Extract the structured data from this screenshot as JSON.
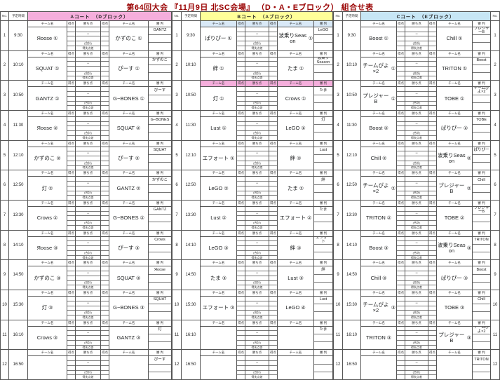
{
  "title": "第64回大会 『11月9日 北SC会場』 （D・A・Eブロック） 組合せ表",
  "title_color": "#990000",
  "labels": {
    "no": "No.",
    "time": "予定時間",
    "team": "チーム名",
    "score": "得点",
    "points": "勝ち点",
    "referee": "審 判",
    "dash": "−",
    "total": "(合計)",
    "diff": "得失点差"
  },
  "sections": [
    {
      "id": "A",
      "banner": "Aコート　（Dブロック）",
      "banner_color": "#F5AEDC",
      "matches": [
        {
          "no": "1",
          "time": "9:30",
          "home": "Яoose",
          "home_n": "①",
          "away": "かずのこ",
          "away_n": "①",
          "ref": "GANTZ",
          "hdr_bg": ""
        },
        {
          "no": "2",
          "time": "10:10",
          "home": "SQUAT",
          "home_n": "①",
          "away": "ぴーす",
          "away_n": "①",
          "ref": "かずのこ",
          "hdr_bg": ""
        },
        {
          "no": "3",
          "time": "10:50",
          "home": "GANTZ",
          "home_n": "①",
          "away": "G−BONES",
          "away_n": "①",
          "ref": "ぴーす",
          "hdr_bg": ""
        },
        {
          "no": "4",
          "time": "11:30",
          "home": "Яoose",
          "home_n": "②",
          "away": "SQUAT",
          "away_n": "②",
          "ref": "G−BONES",
          "hdr_bg": ""
        },
        {
          "no": "5",
          "time": "12:10",
          "home": "かずのこ",
          "home_n": "②",
          "away": "ぴーす",
          "away_n": "②",
          "ref": "SQUAT",
          "hdr_bg": ""
        },
        {
          "no": "6",
          "time": "12:50",
          "home": "灯",
          "home_n": "②",
          "away": "GANTZ",
          "away_n": "②",
          "ref": "かずのこ",
          "hdr_bg": ""
        },
        {
          "no": "7",
          "time": "13:30",
          "home": "Crows",
          "home_n": "②",
          "away": "G−BONES",
          "away_n": "②",
          "ref": "GANTZ",
          "hdr_bg": ""
        },
        {
          "no": "8",
          "time": "14:10",
          "home": "Яoose",
          "home_n": "③",
          "away": "ぴーす",
          "away_n": "③",
          "ref": "Crows",
          "hdr_bg": ""
        },
        {
          "no": "9",
          "time": "14:50",
          "home": "かずのこ",
          "home_n": "③",
          "away": "SQUAT",
          "away_n": "③",
          "ref": "Яoose",
          "hdr_bg": ""
        },
        {
          "no": "10",
          "time": "15:30",
          "home": "灯",
          "home_n": "③",
          "away": "G−BONES",
          "away_n": "③",
          "ref": "SQUAT",
          "hdr_bg": ""
        },
        {
          "no": "11",
          "time": "16:10",
          "home": "Crows",
          "home_n": "③",
          "away": "GANTZ",
          "away_n": "③",
          "ref": "灯",
          "hdr_bg": ""
        },
        {
          "no": "12",
          "time": "16:50",
          "home": "",
          "home_n": "",
          "away": "",
          "away_n": "",
          "ref": "ぴーす",
          "hdr_bg": ""
        }
      ]
    },
    {
      "id": "B",
      "banner": "Bコート　（Aブロック）",
      "banner_color": "#FFFF99",
      "matches": [
        {
          "no": "1",
          "time": "9:30",
          "home": "ぱりぴー",
          "home_n": "①",
          "away": "波乗りSeason",
          "away_n": "①",
          "ref": "LeGO",
          "hdr_bg": "#D9E9F7"
        },
        {
          "no": "2",
          "time": "10:10",
          "home": "絆",
          "home_n": "①",
          "away": "たま",
          "away_n": "①",
          "ref": "波乗りSeason",
          "hdr_bg": ""
        },
        {
          "no": "3",
          "time": "10:50",
          "home": "灯",
          "home_n": "①",
          "away": "Crows",
          "away_n": "①",
          "ref": "たま",
          "hdr_bg": "#F5AEDC"
        },
        {
          "no": "4",
          "time": "11:30",
          "home": "Lust",
          "home_n": "①",
          "away": "LeGO",
          "away_n": "①",
          "ref": "灯",
          "hdr_bg": ""
        },
        {
          "no": "5",
          "time": "12:10",
          "home": "エフォート",
          "home_n": "①",
          "away": "絆",
          "away_n": "②",
          "ref": "Lust",
          "hdr_bg": ""
        },
        {
          "no": "6",
          "time": "12:50",
          "home": "LeGO",
          "home_n": "②",
          "away": "たま",
          "away_n": "②",
          "ref": "絆",
          "hdr_bg": ""
        },
        {
          "no": "7",
          "time": "13:30",
          "home": "Lust",
          "home_n": "②",
          "away": "エフォート",
          "away_n": "②",
          "ref": "たま",
          "hdr_bg": ""
        },
        {
          "no": "8",
          "time": "14:10",
          "home": "LeGO",
          "home_n": "③",
          "away": "絆",
          "away_n": "③",
          "ref": "エフォート",
          "hdr_bg": ""
        },
        {
          "no": "9",
          "time": "14:50",
          "home": "たま",
          "home_n": "③",
          "away": "Lust",
          "away_n": "③",
          "ref": "絆",
          "hdr_bg": ""
        },
        {
          "no": "10",
          "time": "15:30",
          "home": "エフォート",
          "home_n": "③",
          "away": "LeGO",
          "away_n": "④",
          "ref": "Lust",
          "hdr_bg": ""
        },
        {
          "no": "11",
          "time": "16:10",
          "home": "",
          "home_n": "",
          "away": "",
          "away_n": "",
          "ref": "たま",
          "hdr_bg": ""
        },
        {
          "no": "12",
          "time": "16:50",
          "home": "",
          "home_n": "",
          "away": "",
          "away_n": "",
          "ref": "",
          "hdr_bg": ""
        }
      ]
    },
    {
      "id": "C",
      "banner": "Cコート　（Eブロック）",
      "banner_color": "#C7E6F5",
      "matches": [
        {
          "no": "1",
          "time": "9:30",
          "home": "Boost",
          "home_n": "①",
          "away": "Chill",
          "away_n": "①",
          "ref": "プレジャーB",
          "hdr_bg": ""
        },
        {
          "no": "2",
          "time": "10:10",
          "home": "チームぴよ×2",
          "home_n": "①",
          "away": "TRITON",
          "away_n": "①",
          "ref": "Boost",
          "hdr_bg": ""
        },
        {
          "no": "3",
          "time": "10:50",
          "home": "プレジャーB",
          "home_n": "①",
          "away": "TOBE",
          "away_n": "①",
          "ref": "チームぴよ×2",
          "hdr_bg": ""
        },
        {
          "no": "4",
          "time": "11:30",
          "home": "Boost",
          "home_n": "②",
          "away": "ぱりぴー",
          "away_n": "②",
          "ref": "TOBE",
          "hdr_bg": ""
        },
        {
          "no": "5",
          "time": "12:10",
          "home": "Chill",
          "home_n": "②",
          "away": "波乗りSeason",
          "away_n": "②",
          "ref": "ぱりぴー",
          "hdr_bg": ""
        },
        {
          "no": "6",
          "time": "12:50",
          "home": "チームぴよ×2",
          "home_n": "②",
          "away": "プレジャーB",
          "away_n": "②",
          "ref": "Chill",
          "hdr_bg": ""
        },
        {
          "no": "7",
          "time": "13:30",
          "home": "TRITON",
          "home_n": "②",
          "away": "TOBE",
          "away_n": "②",
          "ref": "プレジャーB",
          "hdr_bg": ""
        },
        {
          "no": "8",
          "time": "14:10",
          "home": "Boost",
          "home_n": "③",
          "away": "波乗りSeason",
          "away_n": "③",
          "ref": "TRITON",
          "hdr_bg": ""
        },
        {
          "no": "9",
          "time": "14:50",
          "home": "Chill",
          "home_n": "③",
          "away": "ぱりぴー",
          "away_n": "③",
          "ref": "Boost",
          "hdr_bg": ""
        },
        {
          "no": "10",
          "time": "15:30",
          "home": "チームぴよ×2",
          "home_n": "③",
          "away": "TOBE",
          "away_n": "③",
          "ref": "Chill",
          "hdr_bg": ""
        },
        {
          "no": "11",
          "time": "16:10",
          "home": "TRITON",
          "home_n": "③",
          "away": "プレジャーB",
          "away_n": "③",
          "ref": "チームぴよ×2",
          "hdr_bg": ""
        },
        {
          "no": "12",
          "time": "16:50",
          "home": "",
          "home_n": "",
          "away": "",
          "away_n": "",
          "ref": "TRITON",
          "hdr_bg": ""
        }
      ]
    }
  ]
}
